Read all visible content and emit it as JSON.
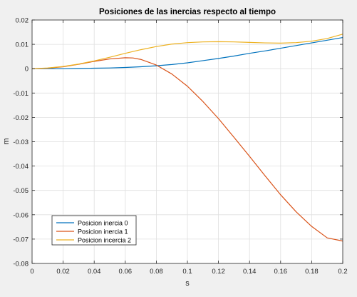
{
  "chart_data": {
    "type": "line",
    "title": "Posiciones de las inercias respecto al tiempo",
    "xlabel": "s",
    "ylabel": "m",
    "xlim": [
      0,
      0.2
    ],
    "ylim": [
      -0.08,
      0.02
    ],
    "x_ticks": [
      0,
      0.02,
      0.04,
      0.06,
      0.08,
      0.1,
      0.12,
      0.14,
      0.16,
      0.18,
      0.2
    ],
    "x_tick_labels": [
      "0",
      "0.02",
      "0.04",
      "0.06",
      "0.08",
      "0.1",
      "0.12",
      "0.14",
      "0.16",
      "0.18",
      "0.2"
    ],
    "y_ticks": [
      0.02,
      0.01,
      0,
      -0.01,
      -0.02,
      -0.03,
      -0.04,
      -0.05,
      -0.06,
      -0.07,
      -0.08
    ],
    "y_tick_labels": [
      "0.02",
      "0.01",
      "0",
      "-0.01",
      "-0.02",
      "-0.03",
      "-0.04",
      "-0.05",
      "-0.06",
      "-0.07",
      "-0.08"
    ],
    "grid": true,
    "legend_position": "bottom-left",
    "series": [
      {
        "name": "Posicion inercia 0",
        "color": "#0072bd",
        "x": [
          0,
          0.01,
          0.02,
          0.03,
          0.04,
          0.05,
          0.06,
          0.07,
          0.08,
          0.09,
          0.1,
          0.11,
          0.12,
          0.13,
          0.14,
          0.15,
          0.16,
          0.17,
          0.18,
          0.19,
          0.2
        ],
        "y": [
          0,
          0,
          0,
          0.0001,
          0.0002,
          0.0003,
          0.0005,
          0.0008,
          0.0012,
          0.0017,
          0.0024,
          0.0033,
          0.0042,
          0.0052,
          0.0063,
          0.0073,
          0.0084,
          0.0095,
          0.0106,
          0.0117,
          0.0128
        ]
      },
      {
        "name": "Posicion inercia 1",
        "color": "#d95319",
        "x": [
          0,
          0.01,
          0.02,
          0.03,
          0.04,
          0.05,
          0.06,
          0.065,
          0.07,
          0.08,
          0.09,
          0.1,
          0.11,
          0.12,
          0.13,
          0.14,
          0.15,
          0.16,
          0.17,
          0.18,
          0.19,
          0.2
        ],
        "y": [
          0,
          0.0002,
          0.0008,
          0.0018,
          0.003,
          0.004,
          0.0045,
          0.0044,
          0.0038,
          0.0015,
          -0.0022,
          -0.0072,
          -0.0135,
          -0.0205,
          -0.0282,
          -0.036,
          -0.044,
          -0.0518,
          -0.0588,
          -0.0648,
          -0.0695,
          -0.0708
        ]
      },
      {
        "name": "Posicion incercia 2",
        "color": "#edb120",
        "x": [
          0,
          0.01,
          0.02,
          0.03,
          0.04,
          0.05,
          0.06,
          0.07,
          0.08,
          0.09,
          0.1,
          0.11,
          0.12,
          0.13,
          0.14,
          0.15,
          0.16,
          0.17,
          0.18,
          0.19,
          0.2
        ],
        "y": [
          0,
          0.0003,
          0.0009,
          0.0019,
          0.0032,
          0.0047,
          0.0063,
          0.0078,
          0.0091,
          0.0101,
          0.0107,
          0.011,
          0.0111,
          0.011,
          0.0108,
          0.0106,
          0.0105,
          0.0107,
          0.0113,
          0.0124,
          0.0142
        ]
      }
    ]
  }
}
